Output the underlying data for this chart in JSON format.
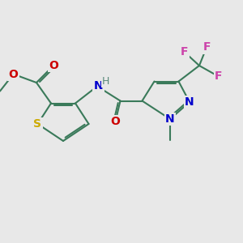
{
  "background_color": "#e8e8e8",
  "bond_color": "#3a7a5a",
  "bond_width": 1.5,
  "atom_labels": {
    "S": {
      "color": "#ccaa00",
      "fontsize": 10,
      "fontweight": "bold"
    },
    "O": {
      "color": "#cc0000",
      "fontsize": 10,
      "fontweight": "bold"
    },
    "N": {
      "color": "#0000cc",
      "fontsize": 10,
      "fontweight": "bold"
    },
    "H": {
      "color": "#5a8a7a",
      "fontsize": 9,
      "fontweight": "normal"
    },
    "F": {
      "color": "#cc44aa",
      "fontsize": 10,
      "fontweight": "bold"
    }
  },
  "fig_width": 3.0,
  "fig_height": 3.0,
  "dpi": 100
}
